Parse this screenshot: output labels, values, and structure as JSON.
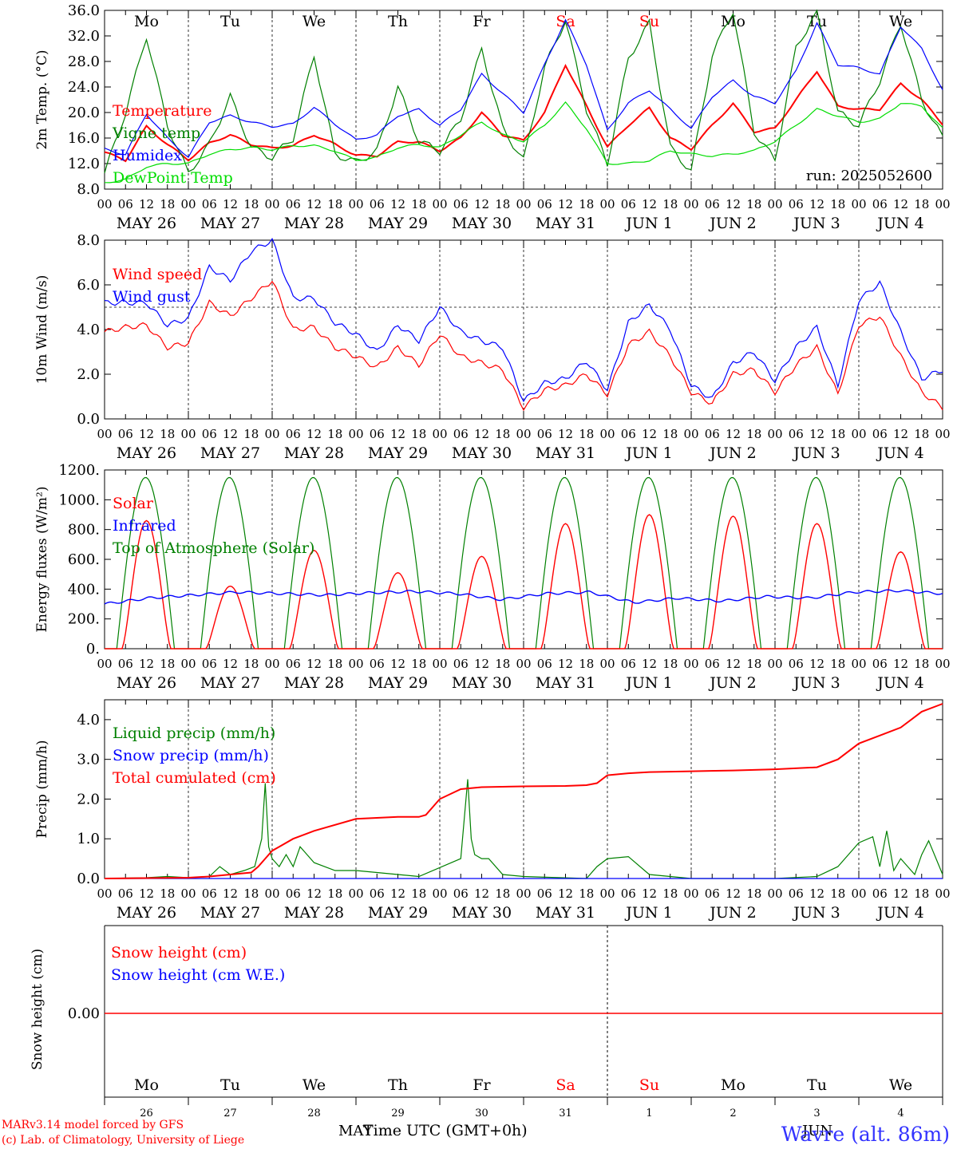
{
  "run_label": "run: 2025052600",
  "footer": {
    "model_line1": "MARv3.14 model forced by GFS",
    "model_line2": "(c) Lab. of Climatology, University of Liege",
    "xlabel": "Time UTC (GMT+0h)",
    "month_left": "MAY",
    "month_right": "JUN",
    "station": "Wavre (alt. 86m)"
  },
  "days": [
    {
      "dow": "Mo",
      "date": "MAY 26",
      "num": "26",
      "weekend": false
    },
    {
      "dow": "Tu",
      "date": "MAY 27",
      "num": "27",
      "weekend": false
    },
    {
      "dow": "We",
      "date": "MAY 28",
      "num": "28",
      "weekend": false
    },
    {
      "dow": "Th",
      "date": "MAY 29",
      "num": "29",
      "weekend": false
    },
    {
      "dow": "Fr",
      "date": "MAY 30",
      "num": "30",
      "weekend": false
    },
    {
      "dow": "Sa",
      "date": "MAY 31",
      "num": "31",
      "weekend": true
    },
    {
      "dow": "Su",
      "date": "JUN  1",
      "num": "1",
      "weekend": true
    },
    {
      "dow": "Mo",
      "date": "JUN  2",
      "num": "2",
      "weekend": false
    },
    {
      "dow": "Tu",
      "date": "JUN  3",
      "num": "3",
      "weekend": false
    },
    {
      "dow": "We",
      "date": "JUN  4",
      "num": "4",
      "weekend": false
    }
  ],
  "hour_ticks": [
    "00",
    "06",
    "12",
    "18"
  ],
  "colors": {
    "red": "#ff0000",
    "blue": "#0000ff",
    "green": "#008000",
    "lightgreen": "#00dd00",
    "station": "#3333ff"
  },
  "chart_data": [
    {
      "type": "line",
      "ylabel": "2m Temp. (°C)",
      "ylim": [
        8,
        36
      ],
      "yticks": [
        "8.0",
        "12.0",
        "16.0",
        "20.0",
        "24.0",
        "28.0",
        "32.0",
        "36.0"
      ],
      "ytick_values": [
        8,
        12,
        16,
        20,
        24,
        28,
        32,
        36
      ],
      "x_hours": [
        0,
        6,
        12,
        18,
        24,
        30,
        36,
        42,
        48,
        54,
        60,
        66,
        72,
        78,
        84,
        90,
        96,
        102,
        108,
        114,
        120,
        126,
        132,
        138,
        144,
        150,
        156,
        162,
        168,
        174,
        180,
        186,
        192,
        198,
        204,
        210,
        216,
        222,
        228,
        234,
        240
      ],
      "series": [
        {
          "name": "Temperature",
          "color": "#ff0000",
          "values": [
            13.8,
            12.5,
            17.8,
            15.0,
            12.6,
            15.2,
            16.5,
            15.0,
            14.4,
            14.8,
            16.5,
            15.0,
            13.3,
            13.2,
            15.4,
            15.4,
            14.0,
            16.0,
            20.0,
            16.5,
            15.6,
            20.0,
            27.5,
            21.0,
            14.6,
            18.0,
            20.7,
            16.0,
            14.3,
            18.0,
            21.4,
            17.0,
            17.5,
            22.0,
            26.5,
            21.0,
            20.5,
            20.5,
            24.5,
            22.0,
            18.2
          ]
        },
        {
          "name": "Vigne temp",
          "color": "#008000",
          "values": [
            10.5,
            20.0,
            32.0,
            18.0,
            10.5,
            15.0,
            22.5,
            14.5,
            13.0,
            16.0,
            29.0,
            13.5,
            12.2,
            14.0,
            24.0,
            15.5,
            14.0,
            19.0,
            30.0,
            17.5,
            12.5,
            27.0,
            34.5,
            20.5,
            12.0,
            28.5,
            34.0,
            14.5,
            10.8,
            29.0,
            36.0,
            17.0,
            12.5,
            30.0,
            36.0,
            20.0,
            18.0,
            25.0,
            34.0,
            22.0,
            16.0
          ]
        },
        {
          "name": "Humidex",
          "color": "#0000ff",
          "values": [
            14.3,
            13.4,
            19.8,
            16.0,
            13.0,
            18.5,
            19.5,
            18.5,
            17.8,
            18.2,
            20.8,
            18.2,
            15.7,
            16.5,
            19.5,
            20.5,
            18.0,
            20.5,
            26.0,
            23.0,
            20.0,
            27.5,
            34.5,
            27.5,
            17.2,
            21.5,
            23.5,
            20.5,
            17.5,
            22.5,
            25.0,
            22.5,
            21.5,
            26.5,
            34.0,
            27.5,
            27.0,
            26.0,
            33.5,
            30.0,
            23.5
          ]
        },
        {
          "name": "DewPoint Temp",
          "color": "#00dd00",
          "values": [
            9.0,
            9.5,
            11.5,
            12.0,
            12.0,
            13.5,
            14.2,
            14.5,
            14.2,
            14.8,
            14.8,
            14.0,
            12.5,
            13.0,
            14.5,
            15.0,
            14.5,
            16.5,
            18.5,
            16.5,
            15.5,
            18.0,
            21.5,
            17.5,
            12.0,
            12.0,
            12.5,
            14.0,
            13.5,
            13.2,
            13.5,
            14.0,
            15.5,
            18.0,
            20.5,
            19.5,
            18.5,
            19.0,
            21.5,
            21.0,
            17.5
          ]
        }
      ]
    },
    {
      "type": "line",
      "ylabel": "10m Wind (m/s)",
      "ylim": [
        0,
        8
      ],
      "yticks": [
        "0.0",
        "2.0",
        "4.0",
        "6.0",
        "8.0"
      ],
      "ytick_values": [
        0,
        2,
        4,
        6,
        8
      ],
      "ref_line": 5,
      "x_hours": [
        0,
        6,
        12,
        18,
        24,
        30,
        36,
        42,
        48,
        54,
        60,
        66,
        72,
        78,
        84,
        90,
        96,
        102,
        108,
        114,
        120,
        126,
        132,
        138,
        144,
        150,
        156,
        162,
        168,
        174,
        180,
        186,
        192,
        198,
        204,
        210,
        216,
        222,
        228,
        234,
        240
      ],
      "series": [
        {
          "name": "Wind speed",
          "color": "#ff0000",
          "values": [
            3.9,
            4.1,
            4.2,
            3.2,
            3.4,
            5.2,
            4.6,
            5.4,
            6.2,
            4.0,
            4.1,
            3.2,
            2.8,
            2.3,
            3.2,
            2.4,
            3.8,
            2.8,
            2.5,
            2.2,
            0.5,
            1.3,
            1.5,
            2.0,
            1.1,
            3.3,
            3.9,
            2.8,
            1.2,
            0.7,
            2.0,
            2.2,
            1.2,
            2.4,
            3.2,
            1.1,
            4.2,
            4.6,
            2.8,
            1.2,
            0.5
          ]
        },
        {
          "name": "Wind gust",
          "color": "#0000ff",
          "values": [
            5.2,
            5.2,
            5.2,
            4.2,
            4.5,
            6.8,
            6.2,
            7.5,
            8.0,
            5.4,
            5.4,
            4.3,
            3.8,
            3.0,
            4.2,
            3.5,
            5.0,
            3.9,
            3.5,
            3.2,
            0.8,
            1.6,
            1.8,
            2.6,
            1.3,
            4.3,
            5.1,
            4.0,
            1.5,
            0.9,
            2.5,
            3.0,
            1.7,
            3.2,
            4.1,
            1.5,
            5.3,
            6.1,
            3.9,
            1.8,
            2.2
          ]
        }
      ]
    },
    {
      "type": "line",
      "ylabel": "Energy fluxes (W/m²)",
      "ylim": [
        0,
        1200
      ],
      "yticks": [
        "0.",
        "200.",
        "400.",
        "600.",
        "800.",
        "1000.",
        "1200."
      ],
      "ytick_values": [
        0,
        200,
        400,
        600,
        800,
        1000,
        1200
      ],
      "solar_peaks": [
        860,
        420,
        660,
        510,
        620,
        840,
        900,
        890,
        840,
        650
      ],
      "toa_peak": 1150,
      "series": [
        {
          "name": "Solar",
          "color": "#ff0000",
          "values": [
            0,
            860,
            0,
            420,
            0,
            660,
            0,
            510,
            0,
            620,
            0,
            840,
            0,
            900,
            0,
            890,
            0,
            840,
            0,
            650
          ]
        },
        {
          "name": "Infrared",
          "color": "#0000ff",
          "values": [
            300,
            340,
            360,
            380,
            370,
            360,
            375,
            385,
            370,
            330,
            370,
            380,
            310,
            340,
            320,
            350,
            340,
            380,
            390,
            370
          ]
        },
        {
          "name": "Top of Atmosphere (Solar)",
          "color": "#008000",
          "values": [
            0,
            1150,
            0,
            1150,
            0,
            1150,
            0,
            1150,
            0,
            1150
          ]
        }
      ]
    },
    {
      "type": "line",
      "ylabel": "Precip (mm/h)",
      "ylim": [
        0,
        4.5
      ],
      "yticks": [
        "0.0",
        "1.0",
        "2.0",
        "3.0",
        "4.0"
      ],
      "ytick_values": [
        0,
        1,
        2,
        3,
        4
      ],
      "series": [
        {
          "name": "Liquid precip (mm/h)",
          "color": "#008000",
          "x_hours": [
            0,
            12,
            18,
            24,
            30,
            33,
            36,
            40,
            43,
            45,
            46,
            47,
            48,
            50,
            52,
            54,
            56,
            60,
            66,
            72,
            78,
            84,
            90,
            102,
            104,
            105,
            106,
            108,
            110,
            114,
            120,
            138,
            141,
            144,
            150,
            156,
            168,
            180,
            192,
            204,
            210,
            216,
            220,
            222,
            224,
            226,
            228,
            232,
            234,
            236,
            240
          ],
          "values": [
            0,
            0.02,
            0.05,
            0.02,
            0.05,
            0.3,
            0.1,
            0.2,
            0.3,
            1.0,
            2.4,
            0.8,
            0.5,
            0.3,
            0.6,
            0.3,
            0.8,
            0.4,
            0.2,
            0.2,
            0.15,
            0.1,
            0.05,
            0.5,
            2.5,
            1.0,
            0.6,
            0.5,
            0.5,
            0.1,
            0.05,
            0,
            0.3,
            0.5,
            0.55,
            0.1,
            0,
            0,
            0,
            0.05,
            0.3,
            0.9,
            1.05,
            0.3,
            1.2,
            0.2,
            0.5,
            0.1,
            0.6,
            0.95,
            0.1
          ]
        },
        {
          "name": "Snow precip (mm/h)",
          "color": "#0000ff",
          "x_hours": [
            0,
            240
          ],
          "values": [
            0,
            0
          ]
        },
        {
          "name": "Total cumulated (cm)",
          "color": "#ff0000",
          "x_hours": [
            0,
            24,
            30,
            36,
            42,
            44,
            46,
            48,
            50,
            54,
            60,
            72,
            84,
            90,
            92,
            96,
            102,
            108,
            120,
            132,
            138,
            141,
            144,
            150,
            156,
            168,
            180,
            192,
            204,
            210,
            216,
            222,
            228,
            234,
            240
          ],
          "values": [
            0,
            0.02,
            0.05,
            0.1,
            0.15,
            0.3,
            0.5,
            0.7,
            0.8,
            1.0,
            1.2,
            1.5,
            1.55,
            1.55,
            1.6,
            2.0,
            2.25,
            2.3,
            2.32,
            2.33,
            2.35,
            2.4,
            2.6,
            2.65,
            2.68,
            2.7,
            2.72,
            2.75,
            2.8,
            3.0,
            3.4,
            3.6,
            3.8,
            4.2,
            4.4
          ]
        }
      ]
    },
    {
      "type": "line",
      "ylabel": "Snow height (cm)",
      "yticks": [
        "0.00"
      ],
      "series": [
        {
          "name": "Snow height (cm)",
          "color": "#ff0000",
          "values": [
            0,
            0
          ]
        },
        {
          "name": "Snow height (cm W.E.)",
          "color": "#0000ff",
          "values": [
            0,
            0
          ]
        }
      ]
    }
  ]
}
